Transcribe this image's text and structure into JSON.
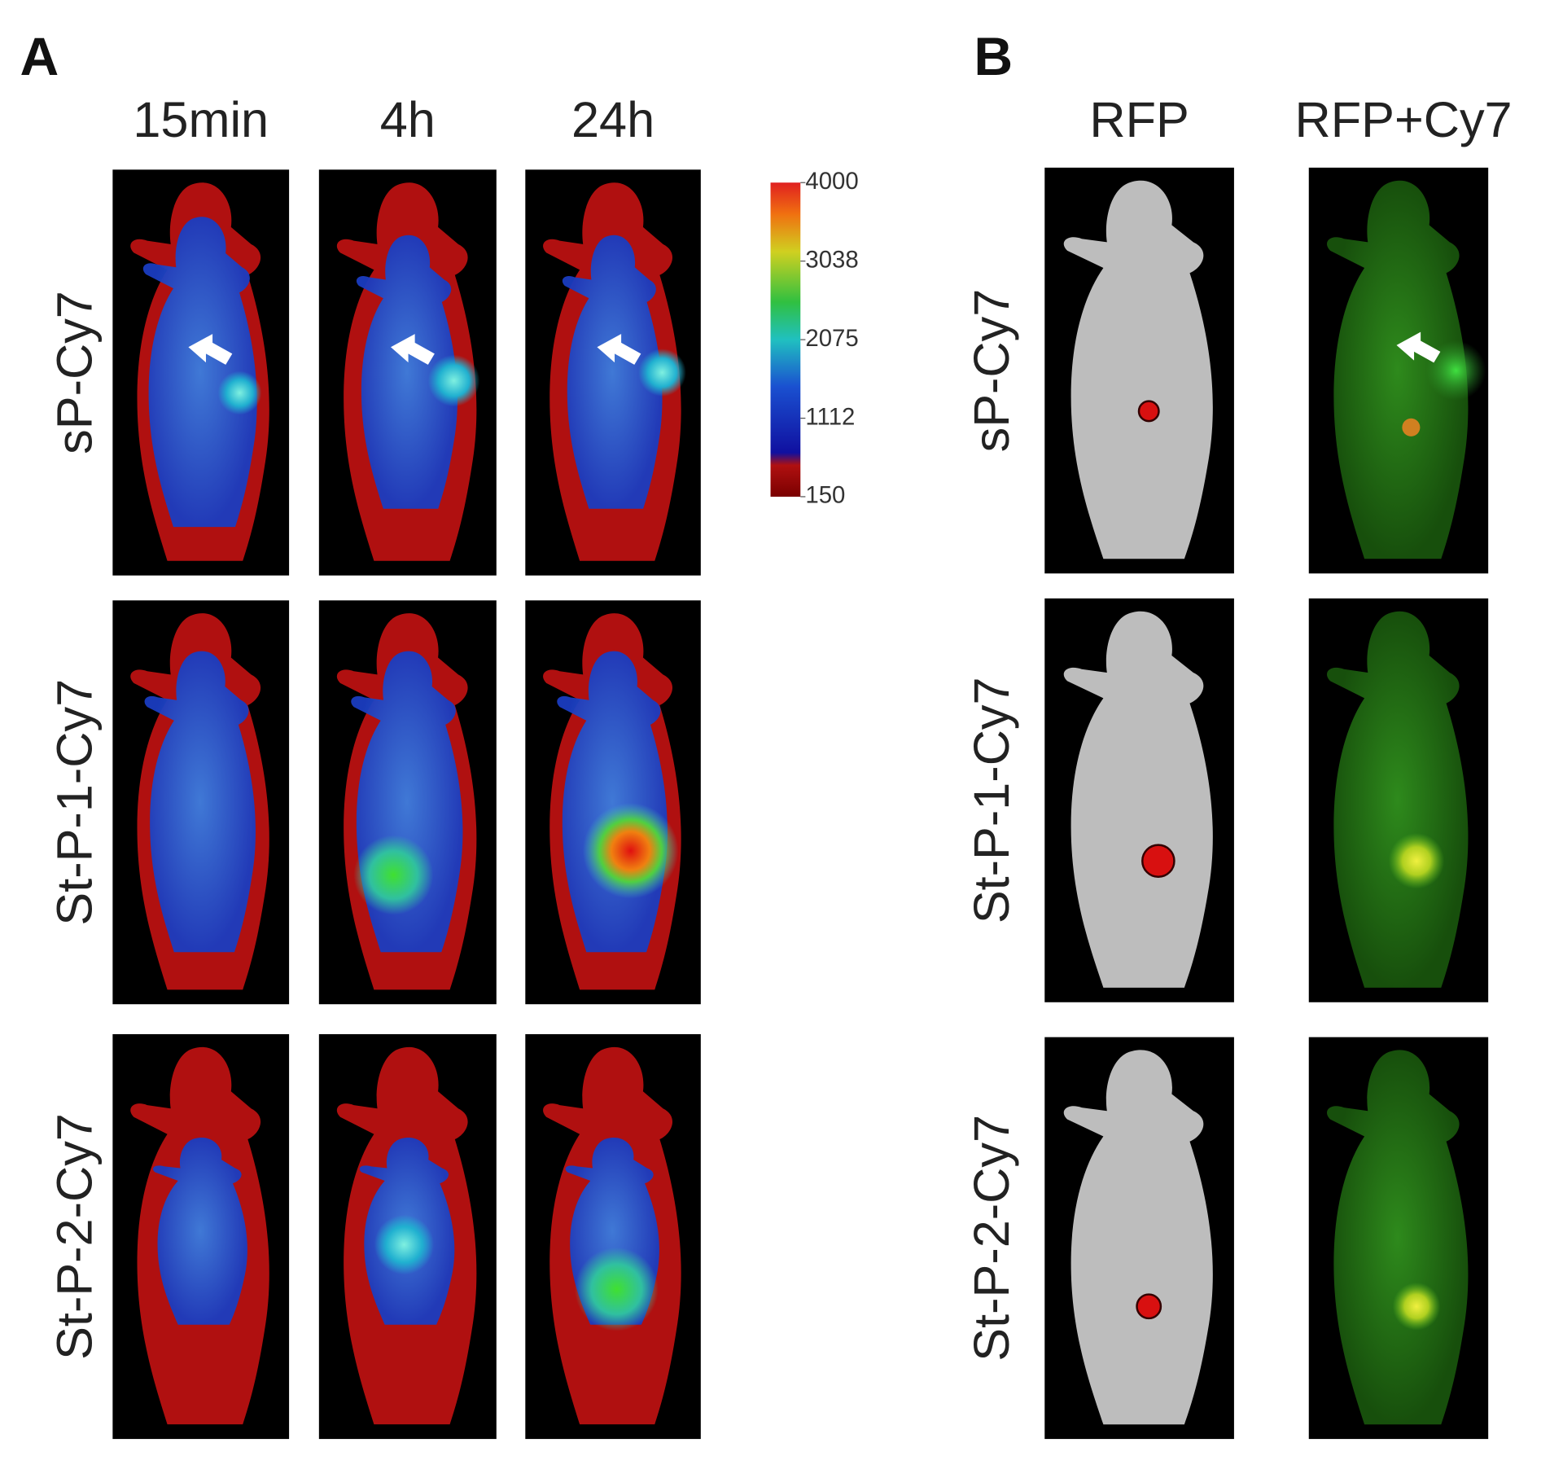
{
  "panels": [
    {
      "label": "A",
      "columns": [
        "15min",
        "4h",
        "24h"
      ],
      "rows": [
        "sP-Cy7",
        "St-P-1-Cy7",
        "St-P-2-Cy7"
      ],
      "colorbar": {
        "ticks": [
          4000,
          3038,
          2075,
          1112,
          150
        ]
      }
    },
    {
      "label": "B",
      "columns": [
        "RFP",
        "RFP+Cy7"
      ],
      "rows": [
        "sP-Cy7",
        "St-P-1-Cy7",
        "St-P-2-Cy7"
      ]
    }
  ]
}
